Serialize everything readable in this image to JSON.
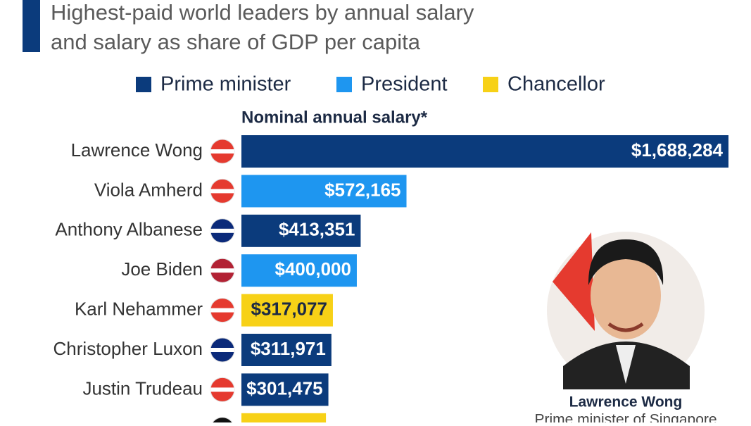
{
  "chart_data": {
    "type": "bar",
    "orientation": "horizontal",
    "title": [
      "Highest-paid world leaders by annual salary",
      "and salary as share of GDP per capita"
    ],
    "subtitle": "Nominal annual salary*",
    "categories": [
      "Lawrence Wong",
      "Viola Amherd",
      "Anthony Albanese",
      "Joe Biden",
      "Karl Nehammer",
      "Christopher Luxon",
      "Justin Trudeau",
      null
    ],
    "series": [
      {
        "name": "Prime minister",
        "color": "#0b3b7c",
        "values": [
          1688284,
          null,
          413351,
          null,
          null,
          311971,
          301475,
          null
        ],
        "value_labels": [
          "$1,688,284",
          null,
          "$413,351",
          null,
          null,
          "$311,971",
          "$301,475",
          null
        ]
      },
      {
        "name": "President",
        "color": "#1e96f0",
        "values": [
          null,
          572165,
          null,
          400000,
          null,
          null,
          null,
          null
        ],
        "value_labels": [
          null,
          "$572,165",
          null,
          "$400,000",
          null,
          null,
          null,
          null
        ]
      },
      {
        "name": "Chancellor",
        "color": "#f7d117",
        "values": [
          null,
          null,
          null,
          null,
          317077,
          null,
          null,
          293000
        ],
        "value_labels": [
          null,
          null,
          null,
          null,
          "$317,077",
          null,
          null,
          null
        ]
      }
    ],
    "legend_position": "top",
    "photo_caption": [
      "Lawrence Wong",
      "Prime minister of Singapore"
    ]
  }
}
